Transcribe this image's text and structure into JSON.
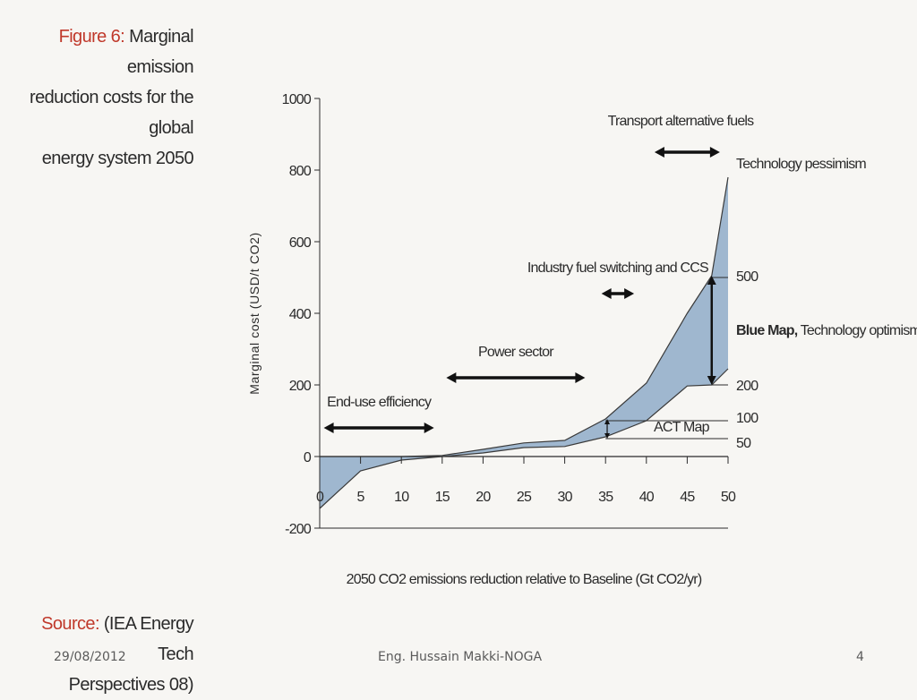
{
  "figure": {
    "label": "Figure 6:",
    "title_lines": [
      "Marginal emission",
      "reduction costs for the global",
      "energy system 2050"
    ]
  },
  "source": {
    "label": "Source:",
    "text_lines": [
      "(IEA Energy Tech",
      "Perspectives 08)"
    ]
  },
  "footer": {
    "date": "29/08/2012",
    "author": "Eng. Hussain Makki-NOGA",
    "page": "4"
  },
  "chart_data": {
    "type": "area",
    "ylabel": "Marginal cost (USD/t CO2)",
    "xlabel": "2050 CO2 emissions reduction relative to Baseline (Gt CO2/yr)",
    "xlim": [
      0,
      50
    ],
    "ylim": [
      -200,
      1000
    ],
    "x_ticks": [
      0,
      5,
      10,
      15,
      20,
      25,
      30,
      35,
      40,
      45,
      50
    ],
    "y_ticks": [
      -200,
      0,
      200,
      400,
      600,
      800,
      1000
    ],
    "series": [
      {
        "name": "Technology pessimism",
        "x": [
          0,
          5,
          10,
          15,
          20,
          25,
          30,
          35,
          40,
          45,
          48,
          50
        ],
        "y": [
          0,
          0,
          0,
          3,
          20,
          38,
          45,
          105,
          205,
          400,
          505,
          780
        ]
      },
      {
        "name": "Technology optimism",
        "x": [
          0,
          5,
          10,
          15,
          20,
          25,
          30,
          35,
          40,
          45,
          48,
          50
        ],
        "y": [
          -145,
          -40,
          -10,
          0,
          10,
          25,
          28,
          55,
          100,
          197,
          200,
          245
        ]
      }
    ],
    "fill_color": "#9fb7cf",
    "annotations": [
      {
        "text": "End-use efficiency",
        "x_from": 0.5,
        "x_to": 14,
        "y": 80
      },
      {
        "text": "Power sector",
        "x_from": 15.5,
        "x_to": 32.5,
        "y": 220
      },
      {
        "text": "Industry fuel switching and CCS",
        "x_from": 34.5,
        "x_to": 38.5,
        "y": 455
      },
      {
        "text": "Transport alternative fuels",
        "x_from": 41,
        "x_to": 49,
        "y": 850
      }
    ],
    "right_labels": [
      {
        "text": "Technology pessimism",
        "y": 820
      },
      {
        "text": "500",
        "y": 505
      },
      {
        "text": "Blue Map,",
        "suffix": " Technology optimism",
        "y": 355
      },
      {
        "text": "200",
        "y": 200
      },
      {
        "text": "100",
        "y": 110
      },
      {
        "text": "50",
        "y": 40
      },
      {
        "text": "ACT Map",
        "y": 85
      }
    ],
    "reference_lines": [
      {
        "value": 500,
        "x_from": 48
      },
      {
        "value": 200,
        "x_from": 48
      },
      {
        "value": 100,
        "x_from": 35
      },
      {
        "value": 50,
        "x_from": 35
      }
    ]
  }
}
